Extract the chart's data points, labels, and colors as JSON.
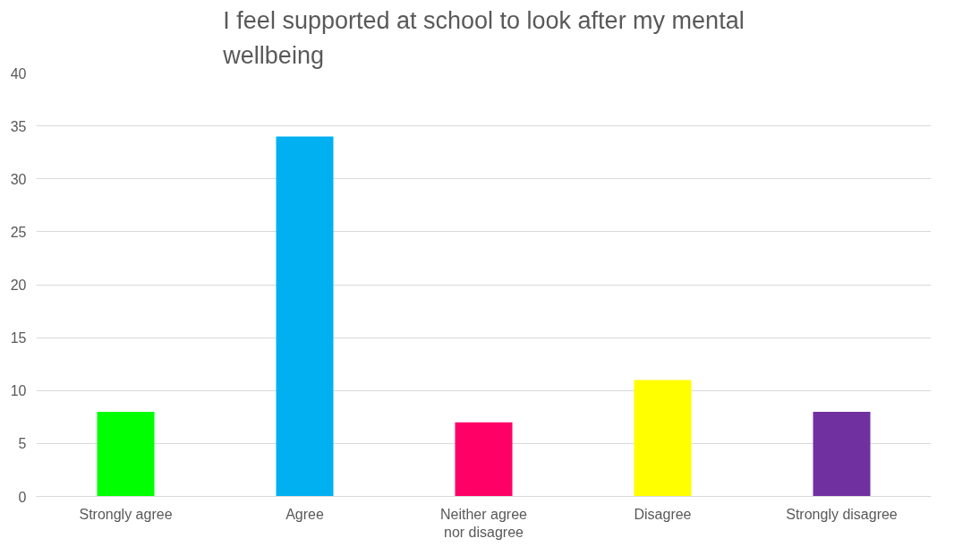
{
  "chart_data": {
    "type": "bar",
    "title": "I feel supported at school to look after my mental wellbeing",
    "categories": [
      "Strongly agree",
      "Agree",
      "Neither agree\nnor disagree",
      "Disagree",
      "Strongly disagree"
    ],
    "values": [
      8,
      34,
      7,
      11,
      8
    ],
    "colors": [
      "#00ff00",
      "#00b0f0",
      "#ff0066",
      "#ffff00",
      "#7030a0"
    ],
    "ylim": [
      0,
      40
    ],
    "yticks": [
      0,
      5,
      10,
      15,
      20,
      25,
      30,
      35,
      40
    ],
    "grid": "y"
  }
}
